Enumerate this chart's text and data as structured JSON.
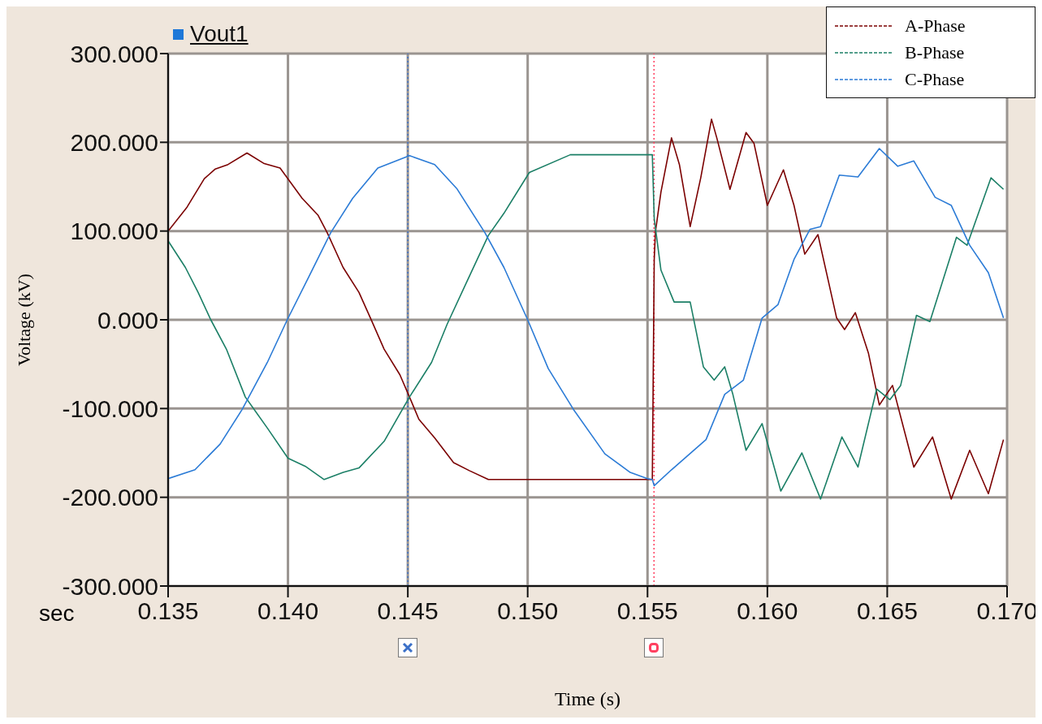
{
  "chart_data": {
    "type": "line",
    "title": "Vout1",
    "xlabel": "Time (s)",
    "ylabel": "Voltage (kV)",
    "annotations": [
      "sec"
    ],
    "xlim": [
      0.135,
      0.17
    ],
    "ylim": [
      -300,
      300
    ],
    "xticks": [
      {
        "value": 0.135,
        "label": "0.135"
      },
      {
        "value": 0.14,
        "label": "0.140"
      },
      {
        "value": 0.145,
        "label": "0.145"
      },
      {
        "value": 0.15,
        "label": "0.150"
      },
      {
        "value": 0.155,
        "label": "0.155"
      },
      {
        "value": 0.16,
        "label": "0.160"
      },
      {
        "value": 0.165,
        "label": "0.165"
      },
      {
        "value": 0.17,
        "label": "0.170"
      }
    ],
    "yticks": [
      {
        "value": 300,
        "label": "300.000"
      },
      {
        "value": 200,
        "label": "200.000"
      },
      {
        "value": 100,
        "label": "100.000"
      },
      {
        "value": 0,
        "label": "0.000"
      },
      {
        "value": -100,
        "label": "-100.000"
      },
      {
        "value": -200,
        "label": "-200.000"
      },
      {
        "value": -300,
        "label": "-300.000"
      }
    ],
    "grid": true,
    "legend": "top right",
    "line_style": "solid",
    "ref_lines": [
      {
        "axis": "x",
        "value": 0.145,
        "color": "#3a6fc8",
        "line_style": "dotted"
      },
      {
        "axis": "x",
        "value": 0.15527,
        "color": "#ff4060",
        "line_style": "dotted"
      }
    ],
    "series": [
      {
        "name": "A-Phase",
        "color": "#7b0000",
        "x": [
          0.135,
          0.13579,
          0.13651,
          0.13697,
          0.1375,
          0.13829,
          0.13901,
          0.13967,
          0.14059,
          0.14125,
          0.14164,
          0.1423,
          0.14296,
          0.14349,
          0.14401,
          0.14467,
          0.14507,
          0.14546,
          0.14612,
          0.14691,
          0.14757,
          0.14836,
          0.15507,
          0.1552,
          0.15528,
          0.15533,
          0.15556,
          0.156,
          0.15633,
          0.15678,
          0.15722,
          0.15767,
          0.15789,
          0.15844,
          0.15911,
          0.15944,
          0.16,
          0.16067,
          0.16111,
          0.16156,
          0.16211,
          0.16289,
          0.16322,
          0.16367,
          0.16422,
          0.16467,
          0.16522,
          0.16611,
          0.16689,
          0.16767,
          0.16844,
          0.16922,
          0.16985
        ],
        "values": [
          100,
          127,
          159,
          170,
          175,
          188,
          176,
          171,
          137,
          118,
          98,
          59,
          31,
          -1,
          -33,
          -62,
          -87,
          -112,
          -133,
          -161,
          -170,
          -180,
          -180,
          -180,
          68,
          99,
          144,
          205,
          175,
          105,
          160,
          226,
          205,
          147,
          211,
          199,
          129,
          169,
          129,
          74,
          96,
          2,
          -11,
          8,
          -38,
          -96,
          -74,
          -166,
          -132,
          -202,
          -147,
          -196,
          -135
        ]
      },
      {
        "name": "B-Phase",
        "color": "#1b7f66",
        "x": [
          0.135,
          0.13572,
          0.13625,
          0.13678,
          0.13743,
          0.13822,
          0.13914,
          0.14,
          0.14072,
          0.14151,
          0.1423,
          0.14296,
          0.14401,
          0.14507,
          0.14599,
          0.14664,
          0.14743,
          0.14836,
          0.14901,
          0.15007,
          0.15178,
          0.1552,
          0.15528,
          0.15556,
          0.15611,
          0.15678,
          0.15733,
          0.15778,
          0.15822,
          0.15856,
          0.15911,
          0.15978,
          0.16056,
          0.16144,
          0.16222,
          0.16311,
          0.16378,
          0.16456,
          0.16511,
          0.16556,
          0.16622,
          0.16678,
          0.16789,
          0.16833,
          0.16933,
          0.16985
        ],
        "values": [
          89,
          59,
          31,
          0,
          -33,
          -87,
          -122,
          -156,
          -165,
          -180,
          -172,
          -167,
          -137,
          -87,
          -48,
          -5,
          41,
          95,
          120,
          166,
          186,
          186,
          114,
          56,
          20,
          20,
          -53,
          -68,
          -53,
          -84,
          -147,
          -117,
          -193,
          -150,
          -202,
          -132,
          -166,
          -78,
          -90,
          -74,
          5,
          -2,
          93,
          84,
          160,
          147
        ]
      },
      {
        "name": "C-Phase",
        "color": "#2b7bd6",
        "x": [
          0.135,
          0.13612,
          0.13717,
          0.13809,
          0.13914,
          0.13997,
          0.14086,
          0.14178,
          0.1427,
          0.14375,
          0.14507,
          0.14612,
          0.14704,
          0.14822,
          0.14901,
          0.15,
          0.15086,
          0.15191,
          0.15322,
          0.15428,
          0.155,
          0.1552,
          0.15528,
          0.156,
          0.15744,
          0.15822,
          0.159,
          0.15978,
          0.16044,
          0.16111,
          0.16178,
          0.16222,
          0.163,
          0.16378,
          0.16467,
          0.16544,
          0.16611,
          0.167,
          0.16767,
          0.16844,
          0.16922,
          0.16985
        ],
        "values": [
          -179,
          -169,
          -140,
          -101,
          -48,
          0,
          48,
          98,
          137,
          171,
          185,
          175,
          148,
          98,
          59,
          0,
          -55,
          -101,
          -151,
          -172,
          -179,
          -180,
          -187,
          -169,
          -135,
          -84,
          -68,
          2,
          17,
          68,
          102,
          105,
          163,
          161,
          193,
          173,
          179,
          138,
          129,
          84,
          53,
          2
        ]
      }
    ]
  }
}
